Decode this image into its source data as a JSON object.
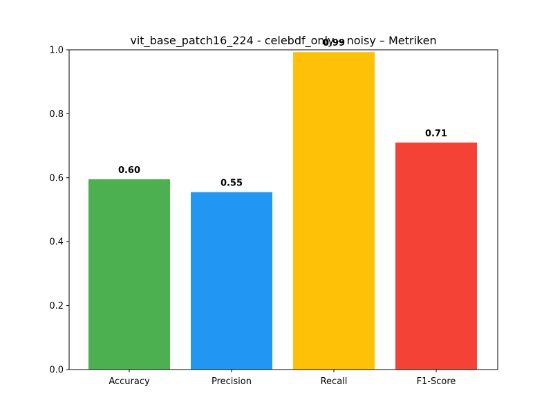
{
  "chart_data": {
    "type": "bar",
    "title": "vit_base_patch16_224 - celebdf_only – noisy – Metriken",
    "xlabel": "",
    "ylabel": "",
    "categories": [
      "Accuracy",
      "Precision",
      "Recall",
      "F1-Score"
    ],
    "values": [
      0.595,
      0.555,
      0.993,
      0.71
    ],
    "data_labels": [
      "0.60",
      "0.55",
      "0.99",
      "0.71"
    ],
    "colors": [
      "#4caf50",
      "#2196f3",
      "#ffc107",
      "#f44336"
    ],
    "ylim": [
      0.0,
      1.0
    ],
    "yticks": [
      0.0,
      0.2,
      0.4,
      0.6,
      0.8,
      1.0
    ],
    "ytick_labels": [
      "0.0",
      "0.2",
      "0.4",
      "0.6",
      "0.8",
      "1.0"
    ],
    "grid": false,
    "legend": "none"
  }
}
